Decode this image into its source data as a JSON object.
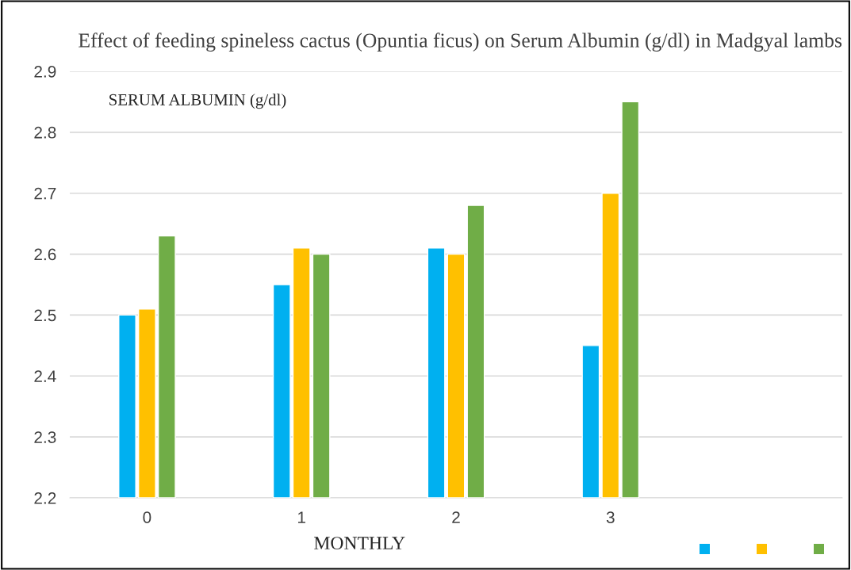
{
  "chart_data": {
    "type": "bar",
    "title": "Effect of feeding spineless cactus (Opuntia ficus) on Serum Albumin (g/dl) in Madgyal lambs",
    "xlabel": "MONTHLY",
    "ylabel": "SERUM ALBUMIN (g/dl)",
    "categories": [
      "0",
      "1",
      "2",
      "3",
      null
    ],
    "series": [
      {
        "color": "#00b0f0",
        "values": [
          2.5,
          2.55,
          2.61,
          2.45,
          null
        ]
      },
      {
        "color": "#ffc000",
        "values": [
          2.51,
          2.61,
          2.6,
          2.7,
          null
        ]
      },
      {
        "color": "#70ad47",
        "values": [
          2.63,
          2.6,
          2.68,
          2.85,
          null
        ]
      }
    ],
    "ylim": [
      2.2,
      2.9
    ],
    "yticks": [
      2.2,
      2.3,
      2.4,
      2.5,
      2.6,
      2.7,
      2.8,
      2.9
    ],
    "grid": "y"
  }
}
